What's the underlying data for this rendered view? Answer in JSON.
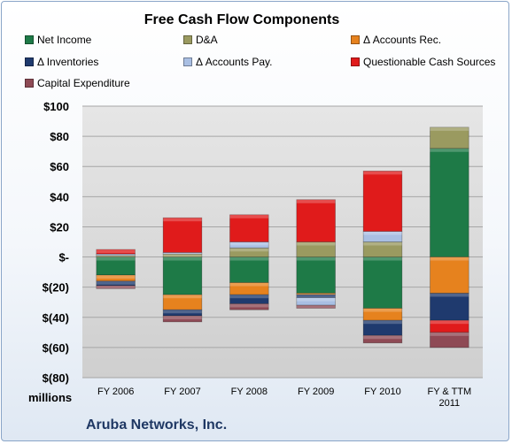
{
  "chart_data": {
    "type": "bar",
    "stacked": true,
    "title": "Free Cash Flow Components",
    "units_label": "millions",
    "company": "Aruba Networks, Inc.",
    "categories": [
      [
        "FY 2006"
      ],
      [
        "FY 2007"
      ],
      [
        "FY 2008"
      ],
      [
        "FY 2009"
      ],
      [
        "FY 2010"
      ],
      [
        "FY & TTM",
        "2011"
      ]
    ],
    "y_ticks": [
      "$100",
      "$80",
      "$60",
      "$40",
      "$20",
      "$-",
      "$(20)",
      "$(40)",
      "$(60)",
      "$(80)"
    ],
    "ylim": [
      -80,
      100
    ],
    "grid": true,
    "legend_position": "top",
    "series": [
      {
        "name": "Net Income",
        "color": "#1e7a47",
        "values": [
          -12,
          -25,
          -17,
          -24,
          -34,
          72
        ]
      },
      {
        "name": "D&A",
        "color": "#9a9a60",
        "values": [
          1,
          2,
          6,
          10,
          10,
          14
        ]
      },
      {
        "name": "Δ Accounts Rec.",
        "color": "#e6821e",
        "values": [
          -4,
          -10,
          -8,
          -1,
          -8,
          -24
        ]
      },
      {
        "name": "Δ Inventories",
        "color": "#1f3a6e",
        "values": [
          -3,
          -4,
          -6,
          -2,
          -10,
          -18
        ]
      },
      {
        "name": "Δ Accounts Pay.",
        "color": "#a9bfe3",
        "values": [
          1,
          1,
          4,
          -5,
          7,
          0
        ]
      },
      {
        "name": "Questionable Cash Sources",
        "color": "#e01b1b",
        "values": [
          3,
          23,
          18,
          28,
          40,
          -8
        ]
      },
      {
        "name": "Capital Expenditure",
        "color": "#8e4a55",
        "values": [
          -2,
          -4,
          -4,
          -2,
          -5,
          -10
        ]
      }
    ]
  }
}
